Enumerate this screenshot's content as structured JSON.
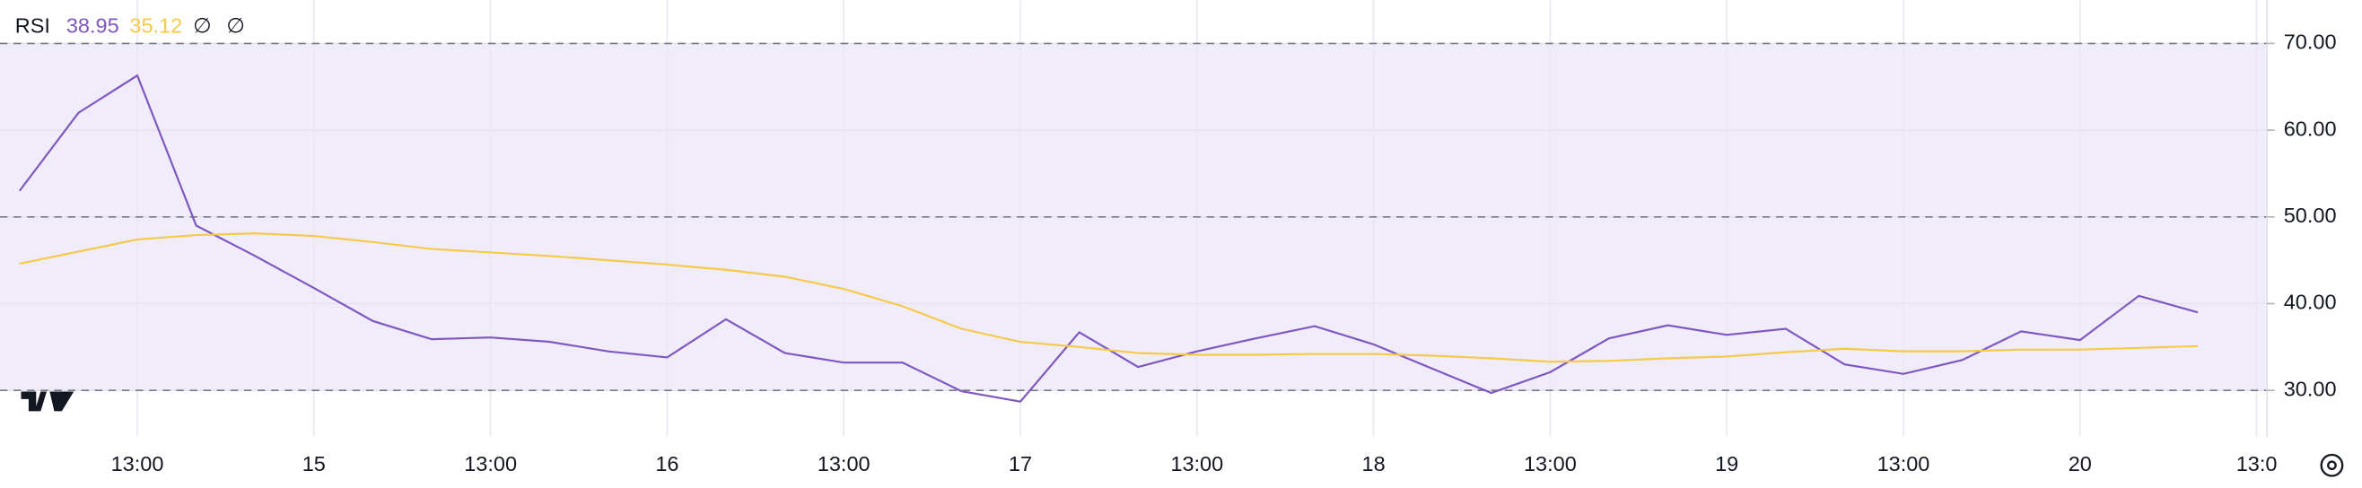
{
  "chart_data": {
    "type": "line",
    "title": "RSI",
    "header_icons": [
      "∅",
      "∅"
    ],
    "categories": [
      null,
      null,
      "13:00",
      null,
      null,
      "15",
      null,
      null,
      "13:00",
      null,
      null,
      "16",
      null,
      null,
      "13:00",
      null,
      null,
      "17",
      null,
      null,
      "13:00",
      null,
      null,
      "18",
      null,
      null,
      "13:00",
      null,
      null,
      "19",
      null,
      null,
      "13:00",
      null,
      null,
      "20",
      null,
      null,
      "13:0"
    ],
    "series": [
      {
        "color": "#7e57c2",
        "last_value": 38.95,
        "values": [
          53,
          62,
          66.3,
          49,
          45.5,
          41.8,
          38,
          35.9,
          36.1,
          35.6,
          34.5,
          33.8,
          38.2,
          34.3,
          33.2,
          33.2,
          29.9,
          28.7,
          36.7,
          32.7,
          34.5,
          36,
          37.4,
          35.3,
          32.5,
          29.7,
          32.1,
          36,
          37.5,
          36.4,
          37.1,
          33,
          31.9,
          33.5,
          36.8,
          35.8,
          40.9,
          39,
          null
        ]
      },
      {
        "color": "#f7c948",
        "last_value": 35.12,
        "values": [
          44.6,
          46,
          47.4,
          47.9,
          48.1,
          47.8,
          47.1,
          46.3,
          45.9,
          45.5,
          45,
          44.5,
          43.9,
          43.1,
          41.7,
          39.7,
          37.1,
          35.6,
          35,
          34.3,
          34.1,
          34.1,
          34.2,
          34.2,
          34,
          33.7,
          33.3,
          33.4,
          33.7,
          33.9,
          34.4,
          34.8,
          34.5,
          34.5,
          34.7,
          34.7,
          34.9,
          35.1,
          null
        ]
      }
    ],
    "bands": {
      "upper": 70,
      "middle": 50,
      "lower": 30,
      "fill": "#f1ecf9"
    },
    "ylim": [
      25,
      75
    ],
    "yticks": [
      {
        "value": 30,
        "label": "30.00"
      },
      {
        "value": 40,
        "label": "40.00"
      },
      {
        "value": 50,
        "label": "50.00"
      },
      {
        "value": 60,
        "label": "60.00"
      },
      {
        "value": 70,
        "label": "70.00"
      }
    ],
    "grid": true
  }
}
